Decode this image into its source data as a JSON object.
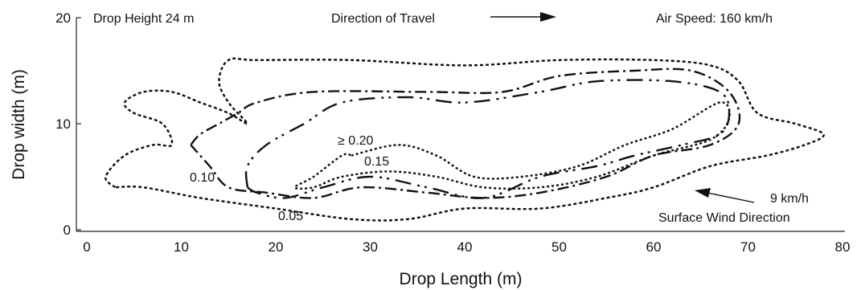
{
  "chart_data": {
    "type": "contour",
    "title": "",
    "xlabel": "Drop Length (m)",
    "ylabel": "Drop width (m)",
    "xlim": [
      0,
      80
    ],
    "ylim": [
      0,
      20
    ],
    "x_ticks": [
      "0",
      "10",
      "20",
      "30",
      "40",
      "50",
      "60",
      "70",
      "80"
    ],
    "y_ticks": [
      "0",
      "10",
      "20"
    ],
    "grid": false,
    "annotations": {
      "drop_height": "Drop Height 24 m",
      "direction": "Direction of Travel",
      "air_speed": "Air Speed: 160 km/h",
      "wind_speed": "9 km/h",
      "wind_direction": "Surface Wind Direction"
    },
    "series": [
      {
        "name": "0.05",
        "points": [
          [
            3,
            4
          ],
          [
            2,
            5
          ],
          [
            4,
            7
          ],
          [
            7,
            8
          ],
          [
            9,
            8
          ],
          [
            8,
            10
          ],
          [
            5,
            11
          ],
          [
            4,
            12
          ],
          [
            6,
            13
          ],
          [
            9,
            13
          ],
          [
            12,
            12
          ],
          [
            15,
            11
          ],
          [
            17,
            10
          ],
          [
            15,
            12
          ],
          [
            14,
            14
          ],
          [
            15,
            16
          ],
          [
            18,
            16
          ],
          [
            28,
            16
          ],
          [
            40,
            15.5
          ],
          [
            50,
            16
          ],
          [
            60,
            16
          ],
          [
            66,
            15.5
          ],
          [
            69,
            14
          ],
          [
            71,
            11
          ],
          [
            75,
            10
          ],
          [
            78,
            9
          ],
          [
            76,
            8
          ],
          [
            72,
            7
          ],
          [
            66,
            6
          ],
          [
            60,
            4
          ],
          [
            55,
            3
          ],
          [
            48,
            2
          ],
          [
            40,
            2
          ],
          [
            34,
            1
          ],
          [
            28,
            1
          ],
          [
            20,
            2
          ],
          [
            12,
            3
          ],
          [
            6,
            4
          ],
          [
            3,
            4
          ]
        ]
      },
      {
        "name": "0.10",
        "points": [
          [
            11,
            8
          ],
          [
            12,
            9
          ],
          [
            14,
            10
          ],
          [
            16,
            11
          ],
          [
            18,
            12
          ],
          [
            24,
            13
          ],
          [
            36,
            13
          ],
          [
            44,
            13
          ],
          [
            50,
            14.5
          ],
          [
            58,
            15
          ],
          [
            64,
            15
          ],
          [
            68,
            13
          ],
          [
            69,
            10
          ],
          [
            66,
            8
          ],
          [
            60,
            7
          ],
          [
            55,
            5
          ],
          [
            48,
            3.5
          ],
          [
            42,
            3
          ],
          [
            36,
            3.5
          ],
          [
            29,
            4
          ],
          [
            24,
            3
          ],
          [
            19,
            3.5
          ],
          [
            15,
            4
          ],
          [
            13,
            6
          ],
          [
            11,
            8
          ]
        ]
      },
      {
        "name": "0.15",
        "points": [
          [
            17,
            4
          ],
          [
            17,
            6
          ],
          [
            19,
            8
          ],
          [
            23,
            10
          ],
          [
            27,
            12
          ],
          [
            34,
            12.5
          ],
          [
            40,
            12
          ],
          [
            48,
            13
          ],
          [
            54,
            14
          ],
          [
            62,
            14
          ],
          [
            67,
            13
          ],
          [
            68,
            11
          ],
          [
            67,
            9
          ],
          [
            63,
            8
          ],
          [
            58,
            7
          ],
          [
            54,
            6
          ],
          [
            48,
            5
          ],
          [
            42,
            3
          ],
          [
            36,
            4
          ],
          [
            30,
            5
          ],
          [
            25,
            4
          ],
          [
            21,
            3
          ],
          [
            18,
            3.5
          ],
          [
            17,
            4
          ]
        ]
      },
      {
        "name": "≥ 0.20",
        "points": [
          [
            28,
            7
          ],
          [
            33,
            8
          ],
          [
            37,
            7
          ],
          [
            41,
            5
          ],
          [
            46,
            5
          ],
          [
            52,
            6
          ],
          [
            57,
            8
          ],
          [
            62,
            9.5
          ],
          [
            67,
            12
          ],
          [
            68,
            10.5
          ],
          [
            66,
            8.5
          ],
          [
            60,
            7
          ],
          [
            54,
            5
          ],
          [
            48,
            4
          ],
          [
            42,
            4
          ],
          [
            37,
            5
          ],
          [
            32,
            5.5
          ],
          [
            27,
            5
          ],
          [
            24,
            4
          ],
          [
            22,
            4
          ],
          [
            24,
            5
          ],
          [
            27,
            7
          ],
          [
            28,
            7
          ]
        ]
      }
    ]
  }
}
